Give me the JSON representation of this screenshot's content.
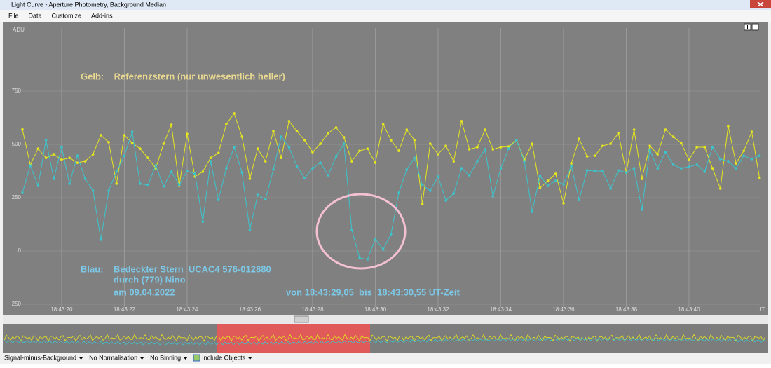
{
  "window": {
    "title": "Light Curve - Aperture Photometry, Background Median",
    "menu": [
      "File",
      "Data",
      "Customize",
      "Add-ins"
    ]
  },
  "chart_data": {
    "type": "line",
    "ylabel": "ADU",
    "xlabel": "UT",
    "x": [
      18.75,
      19,
      19.25,
      19.5,
      19.75,
      20,
      20.25,
      20.5,
      20.75,
      21,
      21.25,
      21.5,
      21.75,
      22,
      22.25,
      22.5,
      22.75,
      23,
      23.25,
      23.5,
      23.75,
      24,
      24.25,
      24.5,
      24.75,
      25,
      25.25,
      25.5,
      25.75,
      26,
      26.25,
      26.5,
      26.75,
      27,
      27.25,
      27.5,
      27.75,
      28,
      28.25,
      28.5,
      28.75,
      29,
      29.25,
      29.5,
      29.75,
      30,
      30.25,
      30.5,
      30.75,
      31,
      31.25,
      31.5,
      31.75,
      32,
      32.25,
      32.5,
      32.75,
      33,
      33.25,
      33.5,
      33.75,
      34,
      34.25,
      34.5,
      34.75,
      35,
      35.25,
      35.5,
      35.75,
      36,
      36.25,
      36.5,
      36.75,
      37,
      37.25,
      37.5,
      37.75,
      38,
      38.25,
      38.5,
      38.75,
      39,
      39.25,
      39.5,
      39.75,
      40,
      40.25,
      40.5,
      40.75,
      41,
      41.25,
      41.5,
      41.75,
      42,
      42.25
    ],
    "series": [
      {
        "name": "Referenzstern",
        "color": "#e6e61e",
        "values": [
          570,
          405,
          480,
          437,
          454,
          428,
          437,
          414,
          421,
          454,
          543,
          510,
          316,
          543,
          507,
          480,
          437,
          388,
          503,
          592,
          306,
          549,
          349,
          372,
          437,
          460,
          595,
          645,
          536,
          339,
          480,
          421,
          562,
          437,
          609,
          562,
          520,
          464,
          503,
          553,
          579,
          533,
          421,
          470,
          480,
          414,
          595,
          520,
          470,
          569,
          520,
          220,
          503,
          454,
          493,
          421,
          609,
          477,
          487,
          569,
          477,
          487,
          490,
          520,
          428,
          503,
          296,
          329,
          362,
          224,
          411,
          526,
          444,
          447,
          493,
          503,
          553,
          368,
          569,
          339,
          493,
          454,
          569,
          536,
          507,
          428,
          487,
          487,
          388,
          293,
          585,
          411,
          470,
          559,
          342
        ]
      },
      {
        "name": "Bedeckter Stern",
        "color": "#3cc4cc",
        "values": [
          273,
          401,
          306,
          520,
          339,
          487,
          316,
          447,
          339,
          283,
          53,
          283,
          372,
          447,
          559,
          316,
          309,
          401,
          303,
          372,
          309,
          375,
          362,
          138,
          421,
          240,
          388,
          487,
          368,
          99,
          263,
          243,
          382,
          536,
          487,
          398,
          342,
          388,
          414,
          355,
          444,
          503,
          99,
          -33,
          -39,
          56,
          7,
          79,
          273,
          382,
          437,
          309,
          283,
          349,
          237,
          270,
          388,
          355,
          421,
          477,
          257,
          388,
          480,
          520,
          421,
          184,
          352,
          306,
          329,
          313,
          398,
          240,
          378,
          375,
          375,
          293,
          378,
          368,
          388,
          194,
          474,
          388,
          464,
          405,
          388,
          395,
          405,
          372,
          487,
          431,
          421,
          388,
          447,
          431,
          447
        ]
      }
    ],
    "xlim": [
      18.75,
      42.28
    ],
    "xticks": [
      {
        "value": 20,
        "label": "18:43:20"
      },
      {
        "value": 22,
        "label": "18:43:22"
      },
      {
        "value": 24,
        "label": "18:43:24"
      },
      {
        "value": 26,
        "label": "18:43:26"
      },
      {
        "value": 28,
        "label": "18:43:28"
      },
      {
        "value": 30,
        "label": "18:43:30"
      },
      {
        "value": 32,
        "label": "18:43:32"
      },
      {
        "value": 34,
        "label": "18:43:34"
      },
      {
        "value": 36,
        "label": "18:43:36"
      },
      {
        "value": 38,
        "label": "18:43:38"
      },
      {
        "value": 40,
        "label": "18:43:40"
      }
    ],
    "ylim": [
      -263,
      1046
    ],
    "yticks": [
      750,
      500,
      250,
      0,
      -250
    ],
    "grid": true
  },
  "annotations": {
    "yellow": "Gelb:    Referenzstern (nur unwesentlich heller)",
    "blue": [
      "Blau:    Bedeckter Stern  UCAC4 576-012880",
      "durch (779) Nino",
      "am 09.04.2022"
    ],
    "interval": "von 18:43:29,05  bis  18:43:30,55 UT-Zeit"
  },
  "statusbar": [
    "Signal-minus-Background",
    "No Normalisation",
    "No Binning",
    "Include Objects"
  ]
}
